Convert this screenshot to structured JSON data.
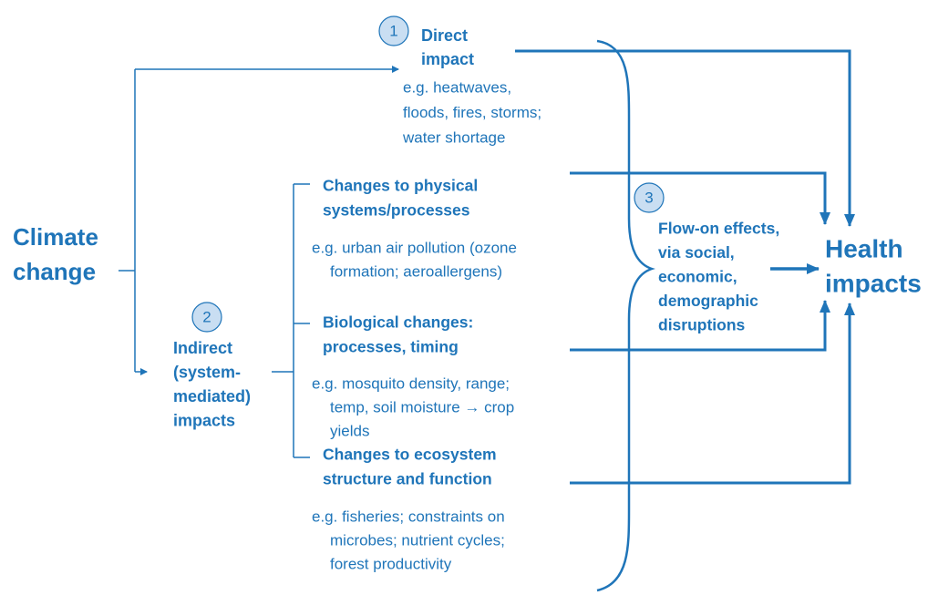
{
  "cause": {
    "lines": [
      "Climate",
      "change"
    ]
  },
  "direct": {
    "number": "1",
    "title": [
      "Direct",
      "impact"
    ],
    "example": [
      "e.g. heatwaves,",
      "floods, fires, storms;",
      "water shortage"
    ]
  },
  "indirect": {
    "number": "2",
    "title": [
      "Indirect",
      "(system-",
      "mediated)",
      "impacts"
    ]
  },
  "pathways": [
    {
      "title": [
        "Changes to physical",
        "systems/processes"
      ],
      "example": [
        "e.g. urban air pollution (ozone",
        "formation; aeroallergens)"
      ]
    },
    {
      "title": [
        "Biological changes:",
        "processes, timing"
      ],
      "example": [
        "e.g. mosquito density, range;",
        "temp, soil moisture → crop",
        "yields"
      ]
    },
    {
      "title": [
        "Changes to ecosystem",
        "structure and function"
      ],
      "example": [
        "e.g. fisheries; constraints on",
        "microbes; nutrient cycles;",
        "forest productivity"
      ]
    }
  ],
  "flow_on": {
    "number": "3",
    "lines": [
      "Flow-on effects,",
      "via social,",
      "economic,",
      "demographic",
      "disruptions"
    ]
  },
  "outcome": {
    "lines": [
      "Health",
      "impacts"
    ]
  }
}
